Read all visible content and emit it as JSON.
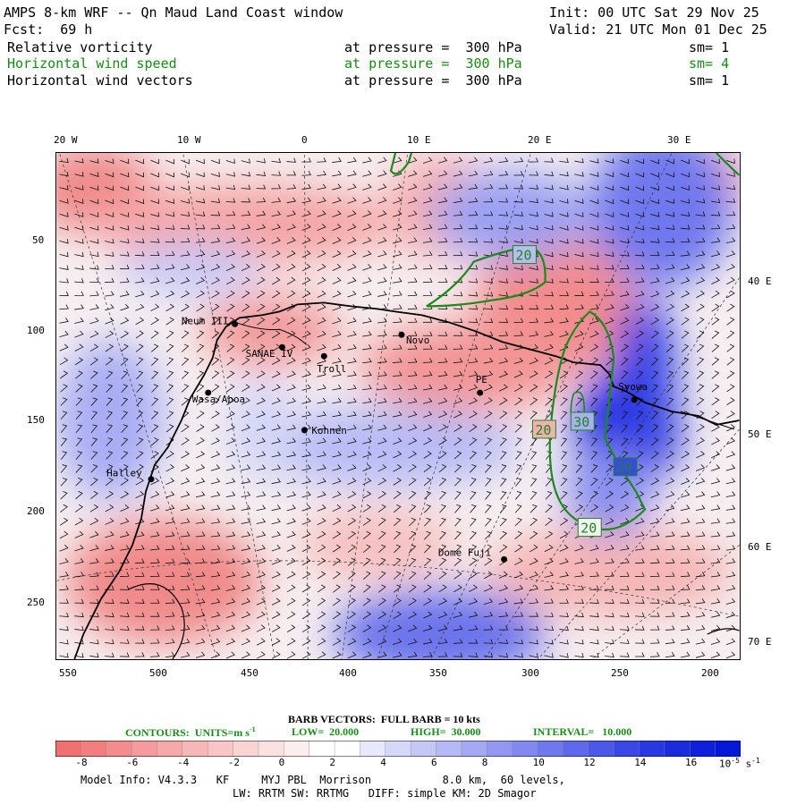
{
  "header": {
    "title": "AMPS 8-km WRF -- Qn Maud Land Coast window",
    "init": "Init: 00 UTC Sat 29 Nov 25",
    "fcst": "Fcst:  69 h",
    "valid": "Valid: 21 UTC Mon 01 Dec 25",
    "fields": [
      {
        "name": "Relative vorticity",
        "level": "at pressure =  300 hPa",
        "sm": "sm= 1",
        "color": "#000000"
      },
      {
        "name": "Horizontal wind speed",
        "level": "at pressure =  300 hPa",
        "sm": "sm= 4",
        "color": "#1a8a1a"
      },
      {
        "name": "Horizontal wind vectors",
        "level": "at pressure =  300 hPa",
        "sm": "sm= 1",
        "color": "#000000"
      }
    ]
  },
  "map": {
    "top_lon_labels": [
      "20 W",
      "10 W",
      "0",
      "10 E",
      "20 E",
      "30 E"
    ],
    "right_lon_labels": [
      "40 E",
      "50 E",
      "60 E",
      "70 E"
    ],
    "left_y_ticks": [
      "50",
      "100",
      "150",
      "200",
      "250"
    ],
    "bottom_x_ticks": [
      "550",
      "500",
      "450",
      "400",
      "350",
      "300",
      "250",
      "200"
    ],
    "stations": [
      "Neum III",
      "SANAE IV",
      "Troll",
      "Novo",
      "PE",
      "Syowa",
      "Wasa/Aboa",
      "Kohnen",
      "Halley",
      "Dome Fuji"
    ],
    "contour_labels": [
      "20",
      "20",
      "30",
      "20",
      "20"
    ],
    "colors": {
      "positive": "#e03030",
      "negative": "#2030e0",
      "contour": "#1a8a1a"
    }
  },
  "legend": {
    "barb_text": "BARB VECTORS:  FULL BARB = 10 kts",
    "contours_label": "CONTOURS:  UNITS=m s",
    "contours_unit_sup": "-1",
    "low": "LOW=  20.000",
    "high": "HIGH=  30.000",
    "interval": "INTERVAL=   10.000"
  },
  "colorbar": {
    "tick_labels": [
      "-8",
      "-6",
      "-4",
      "-2",
      "0",
      "2",
      "4",
      "6",
      "8",
      "10",
      "12",
      "14",
      "16"
    ],
    "units": "10",
    "units_sup": "-5",
    "units_suffix": "s",
    "units_suffix_sup": "-1"
  },
  "footer": {
    "line1": "Model Info: V4.3.3   KF     MYJ PBL  Morrison           8.0 km,  60 levels,",
    "line2": "LW: RRTM SW: RRTMG   DIFF: simple KM: 2D Smagor"
  }
}
